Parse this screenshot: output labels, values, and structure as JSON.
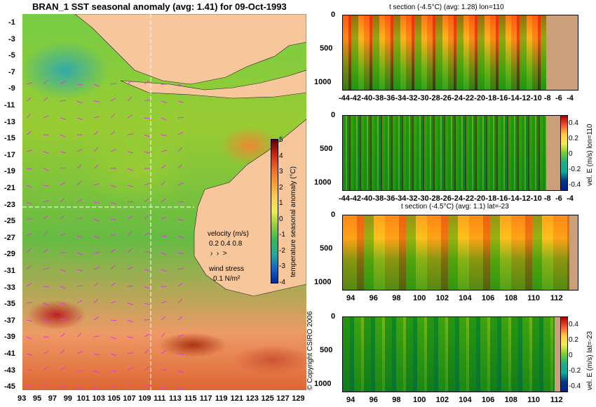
{
  "map": {
    "title": "BRAN_1  SST seasonal anomaly  (avg: 1.41)  for 09-Oct-1993",
    "lat_ticks": [
      "-1",
      "-3",
      "-5",
      "-7",
      "-9",
      "-11",
      "-13",
      "-15",
      "-17",
      "-19",
      "-21",
      "-23",
      "-25",
      "-27",
      "-29",
      "-31",
      "-33",
      "-35",
      "-37",
      "-39",
      "-41",
      "-43",
      "-45"
    ],
    "lon_ticks": [
      "93",
      "95",
      "97",
      "99",
      "101",
      "103",
      "105",
      "107",
      "109",
      "111",
      "113",
      "115",
      "117",
      "119",
      "121",
      "123",
      "125",
      "127",
      "129"
    ],
    "colorbar_ticks": [
      "5",
      "4",
      "3",
      "2",
      "1",
      "0",
      "-1",
      "-2",
      "-3",
      "-4"
    ],
    "colorbar_label": "temperature seasonal anomaly (°C)",
    "legend": {
      "velocity_label": "velocity (m/s)",
      "velocity_scale": "0.2 0.4 0.8",
      "wind_label": "wind stress",
      "wind_scale": "0.1 N/m²"
    },
    "copyright": "© Copyright CSIRO 2006",
    "colors": {
      "land": "#f7c79b",
      "section_line": "#ffffff",
      "vector": "#e03ce0"
    }
  },
  "panels": [
    {
      "title": "t section (-4.5°C) (avg: 1.28) lon=110",
      "x_ticks": [
        "-44",
        "-42",
        "-40",
        "-38",
        "-36",
        "-34",
        "-32",
        "-30",
        "-28",
        "-26",
        "-24",
        "-22",
        "-20",
        "-18",
        "-16",
        "-14",
        "-12",
        "-10",
        "-8",
        "-6",
        "-4"
      ],
      "y_ticks": [
        "0",
        "500",
        "1000"
      ]
    },
    {
      "title": "",
      "x_ticks": [
        "-44",
        "-42",
        "-40",
        "-38",
        "-36",
        "-34",
        "-32",
        "-30",
        "-28",
        "-26",
        "-24",
        "-22",
        "-20",
        "-18",
        "-16",
        "-14",
        "-12",
        "-10",
        "-8",
        "-6",
        "-4"
      ],
      "y_ticks": [
        "0",
        "500",
        "1000"
      ],
      "colorbar_ticks": [
        "0.4",
        "0.2",
        "0",
        "-0.2",
        "-0.4"
      ],
      "colorbar_label": "vel. E (m/s) lon=110"
    },
    {
      "title": "t section (-4.5°C) (avg: 1.1) lat=-23",
      "x_ticks": [
        "94",
        "96",
        "98",
        "100",
        "102",
        "104",
        "106",
        "108",
        "110",
        "112"
      ],
      "y_ticks": [
        "0",
        "500",
        "1000"
      ]
    },
    {
      "title": "",
      "x_ticks": [
        "94",
        "96",
        "98",
        "100",
        "102",
        "104",
        "106",
        "108",
        "110",
        "112"
      ],
      "y_ticks": [
        "0",
        "500",
        "1000"
      ],
      "colorbar_ticks": [
        "0.4",
        "0.2",
        "0",
        "-0.2",
        "-0.4"
      ],
      "colorbar_label": "vel. E (m/s) lat=-23"
    }
  ]
}
